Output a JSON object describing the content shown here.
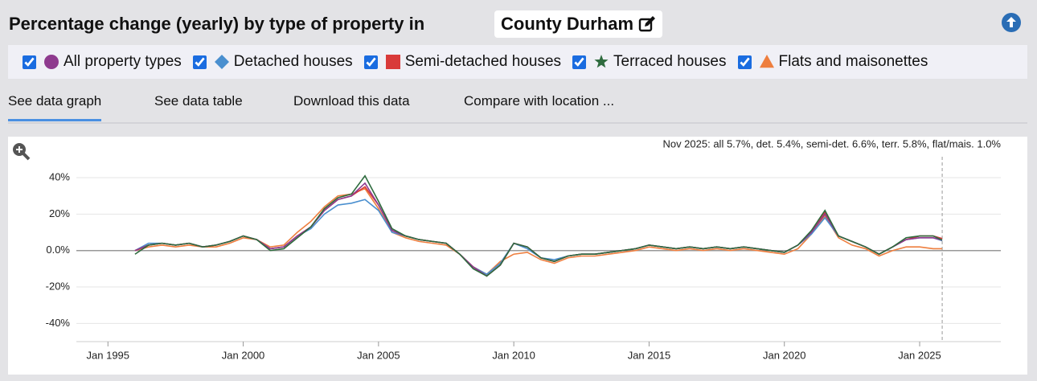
{
  "header": {
    "title": "Percentage change (yearly) by type of property in",
    "location": "County Durham"
  },
  "tabs": [
    "See data graph",
    "See data table",
    "Download this data",
    "Compare with location ..."
  ],
  "active_tab": 0,
  "chart_data": {
    "type": "line",
    "annotation": "Nov 2025: all 5.7%, det. 5.4%, semi-det. 6.6%, terr. 5.8%, flat/mais. 1.0%",
    "x": [
      "Jan 1996",
      "Jul 1996",
      "Jan 1997",
      "Jul 1997",
      "Jan 1998",
      "Jul 1998",
      "Jan 1999",
      "Jul 1999",
      "Jan 2000",
      "Jul 2000",
      "Jan 2001",
      "Jul 2001",
      "Jan 2002",
      "Jul 2002",
      "Jan 2003",
      "Jul 2003",
      "Jan 2004",
      "Jul 2004",
      "Jan 2005",
      "Jul 2005",
      "Jan 2006",
      "Jul 2006",
      "Jan 2007",
      "Jul 2007",
      "Jan 2008",
      "Jul 2008",
      "Jan 2009",
      "Jul 2009",
      "Jan 2010",
      "Jul 2010",
      "Jan 2011",
      "Jul 2011",
      "Jan 2012",
      "Jul 2012",
      "Jan 2013",
      "Jul 2013",
      "Jan 2014",
      "Jul 2014",
      "Jan 2015",
      "Jul 2015",
      "Jan 2016",
      "Jul 2016",
      "Jan 2017",
      "Jul 2017",
      "Jan 2018",
      "Jul 2018",
      "Jan 2019",
      "Jul 2019",
      "Jan 2020",
      "Jul 2020",
      "Jan 2021",
      "Jul 2021",
      "Jan 2022",
      "Jul 2022",
      "Jan 2023",
      "Jul 2023",
      "Jan 2024",
      "Jul 2024",
      "Jan 2025",
      "Jul 2025",
      "Nov 2025"
    ],
    "series": [
      {
        "name": "All property types",
        "color": "#8e3a8e",
        "marker": "circle",
        "checked": true,
        "values": [
          0,
          3,
          4,
          3,
          4,
          2,
          3,
          5,
          8,
          6,
          1,
          2,
          8,
          13,
          22,
          28,
          30,
          37,
          25,
          11,
          8,
          6,
          5,
          4,
          -2,
          -9,
          -14,
          -8,
          4,
          2,
          -4,
          -6,
          -3,
          -2,
          -2,
          -1,
          0,
          1,
          3,
          2,
          1,
          2,
          1,
          2,
          1,
          2,
          1,
          0,
          -1,
          3,
          10,
          20,
          8,
          5,
          2,
          -2,
          2,
          6,
          7,
          7,
          5.7
        ]
      },
      {
        "name": "Detached houses",
        "color": "#4a8fcf",
        "marker": "diamond",
        "checked": true,
        "values": [
          0,
          4,
          4,
          3,
          4,
          2,
          3,
          5,
          8,
          6,
          1,
          2,
          8,
          12,
          20,
          25,
          26,
          28,
          22,
          10,
          8,
          6,
          5,
          4,
          -2,
          -9,
          -13,
          -7,
          4,
          1,
          -4,
          -5,
          -3,
          -2,
          -2,
          -1,
          0,
          1,
          3,
          2,
          1,
          2,
          1,
          2,
          1,
          2,
          1,
          0,
          -1,
          3,
          9,
          18,
          8,
          5,
          2,
          -2,
          2,
          6,
          7,
          7,
          5.4
        ]
      },
      {
        "name": "Semi-detached houses",
        "color": "#d93a3a",
        "marker": "square",
        "checked": true,
        "values": [
          0,
          3,
          4,
          3,
          4,
          2,
          3,
          5,
          8,
          6,
          1,
          2,
          8,
          13,
          22,
          28,
          30,
          35,
          25,
          11,
          8,
          6,
          5,
          4,
          -2,
          -9,
          -14,
          -8,
          4,
          2,
          -4,
          -6,
          -3,
          -2,
          -2,
          -1,
          0,
          1,
          3,
          2,
          1,
          2,
          1,
          2,
          1,
          2,
          1,
          0,
          -1,
          3,
          10,
          21,
          8,
          5,
          2,
          -2,
          2,
          6,
          8,
          8,
          6.6
        ]
      },
      {
        "name": "Terraced houses",
        "color": "#2e6b3e",
        "marker": "star",
        "checked": true,
        "values": [
          -2,
          3,
          4,
          3,
          4,
          2,
          3,
          5,
          8,
          6,
          0,
          1,
          7,
          13,
          23,
          29,
          31,
          41,
          27,
          12,
          8,
          6,
          5,
          4,
          -2,
          -10,
          -14,
          -8,
          4,
          2,
          -4,
          -6,
          -3,
          -2,
          -2,
          -1,
          0,
          1,
          3,
          2,
          1,
          2,
          1,
          2,
          1,
          2,
          1,
          0,
          -1,
          3,
          11,
          22,
          8,
          5,
          2,
          -2,
          2,
          7,
          8,
          8,
          5.8
        ]
      },
      {
        "name": "Flats and maisonettes",
        "color": "#ee7e3e",
        "marker": "triangle",
        "checked": true,
        "values": [
          0,
          2,
          3,
          2,
          3,
          2,
          2,
          4,
          7,
          6,
          2,
          3,
          10,
          16,
          24,
          30,
          31,
          34,
          23,
          10,
          7,
          5,
          4,
          3,
          -2,
          -9,
          -13,
          -6,
          -2,
          -1,
          -5,
          -7,
          -4,
          -3,
          -3,
          -2,
          -1,
          0,
          2,
          1,
          0,
          1,
          0,
          1,
          0,
          1,
          0,
          -1,
          -2,
          1,
          9,
          19,
          7,
          3,
          1,
          -3,
          0,
          2,
          2,
          1,
          1.0
        ]
      }
    ],
    "xlim": [
      "Nov 1993",
      "Jan 2028"
    ],
    "xticks": [
      "Jan 1995",
      "Jan 2000",
      "Jan 2005",
      "Jan 2010",
      "Jan 2015",
      "Jan 2020",
      "Jan 2025"
    ],
    "ylim": [
      -50,
      59
    ],
    "yticks": [
      {
        "value": -40,
        "label": "-40%"
      },
      {
        "value": -20,
        "label": "-20%"
      },
      {
        "value": 0,
        "label": "0.0%"
      },
      {
        "value": 20,
        "label": "20%"
      },
      {
        "value": 40,
        "label": "40%"
      }
    ],
    "grid": true
  }
}
